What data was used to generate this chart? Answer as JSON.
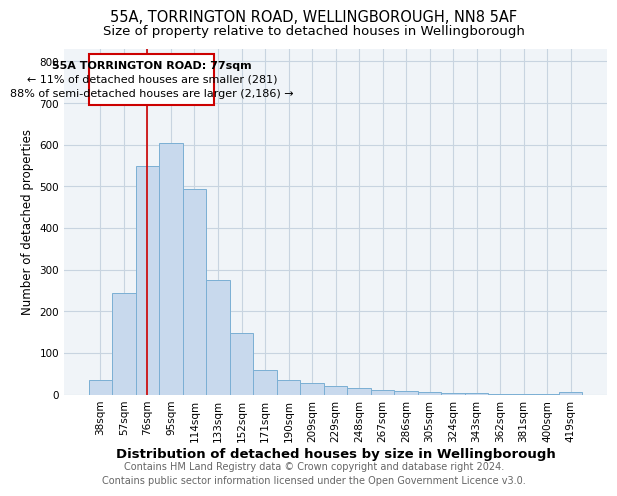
{
  "title": "55A, TORRINGTON ROAD, WELLINGBOROUGH, NN8 5AF",
  "subtitle": "Size of property relative to detached houses in Wellingborough",
  "xlabel": "Distribution of detached houses by size in Wellingborough",
  "ylabel": "Number of detached properties",
  "footer_line1": "Contains HM Land Registry data © Crown copyright and database right 2024.",
  "footer_line2": "Contains public sector information licensed under the Open Government Licence v3.0.",
  "bin_labels": [
    "38sqm",
    "57sqm",
    "76sqm",
    "95sqm",
    "114sqm",
    "133sqm",
    "152sqm",
    "171sqm",
    "190sqm",
    "209sqm",
    "229sqm",
    "248sqm",
    "267sqm",
    "286sqm",
    "305sqm",
    "324sqm",
    "343sqm",
    "362sqm",
    "381sqm",
    "400sqm",
    "419sqm"
  ],
  "bar_values": [
    35,
    245,
    548,
    603,
    493,
    276,
    147,
    60,
    35,
    27,
    20,
    15,
    12,
    8,
    5,
    4,
    3,
    2,
    2,
    2,
    5
  ],
  "bar_color": "#c8d9ed",
  "bar_edgecolor": "#7bafd4",
  "marker_bin_index": 2,
  "marker_color": "#cc0000",
  "ylim": [
    0,
    830
  ],
  "yticks": [
    0,
    100,
    200,
    300,
    400,
    500,
    600,
    700,
    800
  ],
  "annotation_title": "55A TORRINGTON ROAD: 77sqm",
  "annotation_line1": "← 11% of detached houses are smaller (281)",
  "annotation_line2": "88% of semi-detached houses are larger (2,186) →",
  "annotation_box_color": "#ffffff",
  "annotation_box_edgecolor": "#cc0000",
  "bg_color": "#ffffff",
  "plot_bg_color": "#f0f4f8",
  "grid_color": "#c8d4e0",
  "title_fontsize": 10.5,
  "subtitle_fontsize": 9.5,
  "xlabel_fontsize": 9.5,
  "ylabel_fontsize": 8.5,
  "tick_fontsize": 7.5,
  "annotation_fontsize": 8,
  "footer_fontsize": 7
}
